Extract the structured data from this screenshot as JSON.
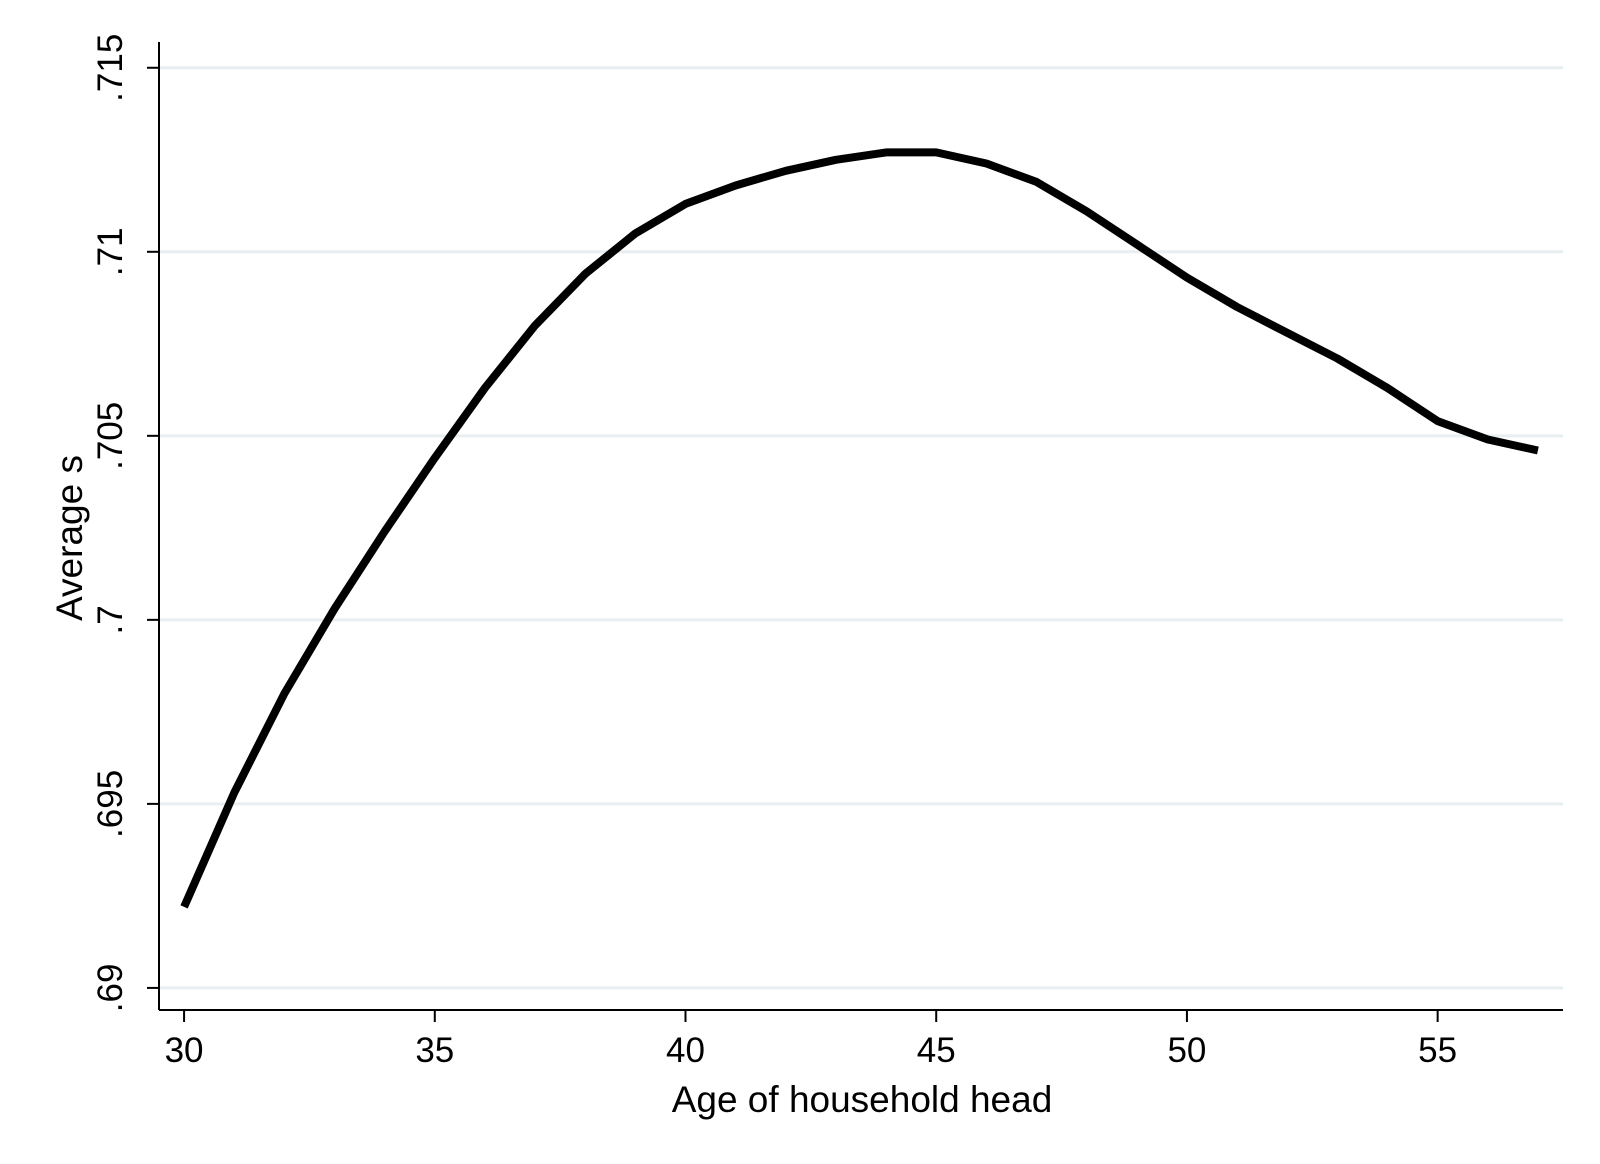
{
  "chart_data": {
    "type": "line",
    "title": "",
    "xlabel": "Age of household head",
    "ylabel": "Average s",
    "xlim": [
      29.5,
      57.5
    ],
    "ylim": [
      0.6894,
      0.7157
    ],
    "x_ticks": [
      30,
      35,
      40,
      45,
      50,
      55
    ],
    "x_tick_labels": [
      "30",
      "35",
      "40",
      "45",
      "50",
      "55"
    ],
    "y_ticks": [
      0.69,
      0.695,
      0.7,
      0.705,
      0.71,
      0.715
    ],
    "y_tick_labels": [
      ".69",
      ".695",
      ".7",
      ".705",
      ".71",
      ".715"
    ],
    "grid": true,
    "line_color": "#000000",
    "grid_color": "#e9eef1",
    "series": [
      {
        "x": [
          30,
          31,
          32,
          33,
          34,
          35,
          36,
          37,
          38,
          39,
          40,
          41,
          42,
          43,
          44,
          45,
          46,
          47,
          48,
          49,
          50,
          51,
          52,
          53,
          54,
          55,
          56,
          57
        ],
        "values": [
          0.6922,
          0.6953,
          0.698,
          0.7003,
          0.7024,
          0.7044,
          0.7063,
          0.708,
          0.7094,
          0.7105,
          0.7113,
          0.7118,
          0.7122,
          0.7125,
          0.7127,
          0.7127,
          0.7124,
          0.7119,
          0.7111,
          0.7102,
          0.7093,
          0.7085,
          0.7078,
          0.7071,
          0.7063,
          0.7054,
          0.7049,
          0.7046
        ]
      }
    ]
  }
}
